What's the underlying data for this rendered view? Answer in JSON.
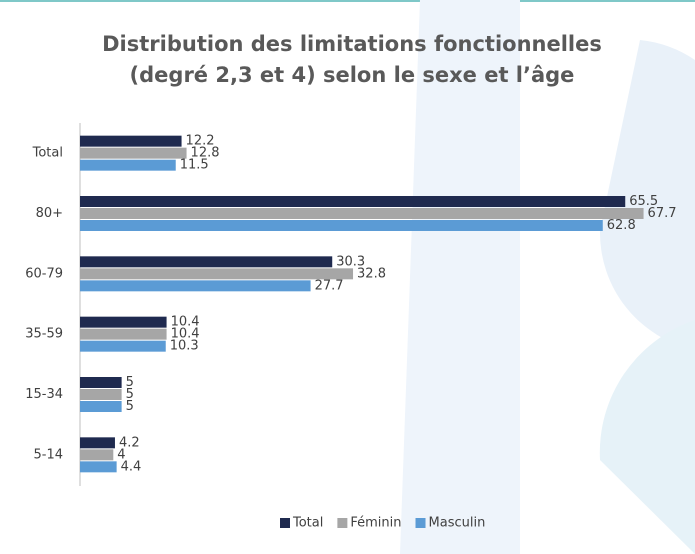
{
  "chart_data": {
    "type": "hbar",
    "title": [
      "Distribution des limitations fonctionnelles",
      "(degré 2,3 et 4) selon le sexe et l’âge"
    ],
    "categories": [
      "Total",
      "80+",
      "60-79",
      "35-59",
      "15-34",
      "5-14"
    ],
    "series": [
      {
        "name": "Total",
        "color": "#1f2a4f",
        "values": [
          12.2,
          65.5,
          30.3,
          10.4,
          5,
          4.2
        ]
      },
      {
        "name": "Féminin",
        "color": "#a6a6a6",
        "values": [
          12.8,
          67.7,
          32.8,
          10.4,
          5,
          4
        ]
      },
      {
        "name": "Masculin",
        "color": "#5b9bd5",
        "values": [
          11.5,
          62.8,
          27.7,
          10.3,
          5,
          4.4
        ]
      }
    ],
    "xlim": [
      0,
      74
    ],
    "legend": "bottom"
  }
}
